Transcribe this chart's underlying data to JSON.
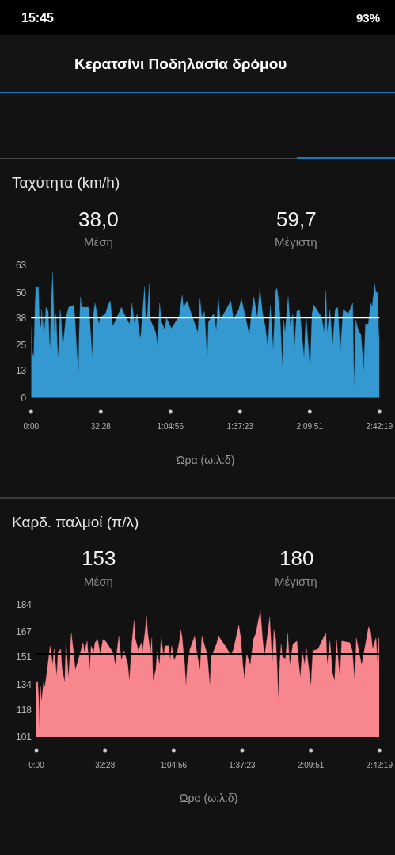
{
  "chart_data": [
    {
      "type": "area",
      "title": "Ταχύτητα (km/h)",
      "xlabel": "Ώρα (ω:λ:δ)",
      "annotations": [
        "15:45",
        "93%",
        "Κερατσίνι Ποδηλασία δρόμου",
        "38,0",
        "Μέση",
        "59,7",
        "Μέγιστη"
      ],
      "xlim": [
        0,
        162.32
      ],
      "xticks": [
        {
          "value": 0,
          "label": "0:00"
        },
        {
          "value": 32.47,
          "label": "32:28"
        },
        {
          "value": 64.93,
          "label": "1:04:56"
        },
        {
          "value": 97.38,
          "label": "1:37:23"
        },
        {
          "value": 129.85,
          "label": "2:09:51"
        },
        {
          "value": 162.32,
          "label": "2:42:19"
        }
      ],
      "ylim": [
        0,
        63
      ],
      "yticks": [
        0,
        13,
        25,
        38,
        50,
        63
      ],
      "ref_lines": [
        {
          "axis": "y",
          "value": 38,
          "color": "#ffffff"
        }
      ],
      "x": [
        0.0,
        0.5,
        1.2,
        1.8,
        2.2,
        3.0,
        3.4,
        3.9,
        4.6,
        4.9,
        5.5,
        6.0,
        6.4,
        6.9,
        8.0,
        8.5,
        8.9,
        9.2,
        9.7,
        10.0,
        10.5,
        10.9,
        11.6,
        12.1,
        12.5,
        13.0,
        13.5,
        14.0,
        14.5,
        15.0,
        15.6,
        16.2,
        17.5,
        19.9,
        20.5,
        21.2,
        21.6,
        22.1,
        22.4,
        23.0,
        23.6,
        26.7,
        27.3,
        28.5,
        28.9,
        29.8,
        31.6,
        32.2,
        34.7,
        35.9,
        36.9,
        37.8,
        38.1,
        42.1,
        43.3,
        45.8,
        46.4,
        47.0,
        48.2,
        49.4,
        50.4,
        51.0,
        52.9,
        53.4,
        54.1,
        55.0,
        55.6,
        58.1,
        58.9,
        59.9,
        60.8,
        62.4,
        63.0,
        65.4,
        69.1,
        70.4,
        71.0,
        72.8,
        74.0,
        77.7,
        78.7,
        79.6,
        80.8,
        82.1,
        82.6,
        85.1,
        86.3,
        87.2,
        88.2,
        93.1,
        94.3,
        96.8,
        98.0,
        101.7,
        102.9,
        103.8,
        105.4,
        106.6,
        107.9,
        109.1,
        110.3,
        111.5,
        112.8,
        114.0,
        114.6,
        115.9,
        117.1,
        117.7,
        118.3,
        119.8,
        120.8,
        122.0,
        122.6,
        123.8,
        125.1,
        127.2,
        128.1,
        130.0,
        130.9,
        131.8,
        135.5,
        136.5,
        137.4,
        138.0,
        139.2,
        140.5,
        141.7,
        142.9,
        144.1,
        145.4,
        147.8,
        149.9,
        150.5,
        151.3,
        152.5,
        153.7,
        155.0,
        155.8,
        157.1,
        158.3,
        158.9,
        160.1,
        160.7,
        161.4,
        162.0,
        162.3
      ],
      "series": [
        {
          "color": "#3399d0",
          "values": [
            34,
            22,
            19,
            43,
            53,
            52,
            53,
            37,
            33,
            42,
            33,
            42,
            31,
            43,
            41,
            27,
            24,
            43,
            52,
            59.7,
            43,
            31,
            40,
            28,
            19,
            27,
            42,
            38,
            27,
            26,
            32,
            38,
            43,
            44,
            37,
            24,
            18,
            13,
            31,
            48,
            43,
            43,
            38,
            19,
            39,
            45,
            35,
            38,
            40,
            44,
            46,
            37,
            34,
            43,
            40,
            35,
            39,
            45,
            35,
            40,
            31,
            28,
            53,
            37,
            38,
            54,
            37,
            31,
            25,
            45,
            36,
            32,
            38,
            33,
            39,
            49,
            43,
            46,
            42,
            31,
            47,
            38,
            41,
            17,
            36,
            40,
            32,
            48,
            37,
            46,
            37,
            42,
            47,
            30,
            42,
            48,
            38,
            52,
            40,
            34,
            24,
            44,
            23,
            51,
            52,
            41,
            15,
            37,
            31,
            48,
            34,
            40,
            22,
            41,
            42,
            19,
            40,
            13,
            40,
            44,
            38,
            31,
            51,
            31,
            42,
            25,
            42,
            43,
            22,
            42,
            40,
            45,
            6,
            37,
            32,
            30,
            13,
            35,
            35,
            45,
            43,
            54,
            50,
            50,
            27,
            38
          ]
        }
      ]
    },
    {
      "type": "area",
      "title": "Καρδ. παλμοί (π/λ)",
      "xlabel": "Ώρα (ω:λ:δ)",
      "annotations": [
        "153",
        "Μέση",
        "180",
        "Μέγιστη"
      ],
      "xlim": [
        0,
        162.32
      ],
      "xticks": [
        {
          "value": 0,
          "label": "0:00"
        },
        {
          "value": 32.47,
          "label": "32:28"
        },
        {
          "value": 64.93,
          "label": "1:04:56"
        },
        {
          "value": 97.38,
          "label": "1:37:23"
        },
        {
          "value": 129.85,
          "label": "2:09:51"
        },
        {
          "value": 162.32,
          "label": "2:42:19"
        }
      ],
      "ylim": [
        101,
        184
      ],
      "yticks": [
        101,
        118,
        134,
        151,
        167,
        184
      ],
      "ref_lines": [
        {
          "axis": "y",
          "value": 153,
          "color": "#000000"
        }
      ],
      "x": [
        0.0,
        0.6,
        1.1,
        1.5,
        1.9,
        2.4,
        3.4,
        4.0,
        5.2,
        6.5,
        7.7,
        8.4,
        9.6,
        10.2,
        11.5,
        12.1,
        13.4,
        14.0,
        15.2,
        16.5,
        17.7,
        18.4,
        20.2,
        22.1,
        22.7,
        24.0,
        25.2,
        25.9,
        27.1,
        27.7,
        29.0,
        30.2,
        31.5,
        32.7,
        35.2,
        36.5,
        37.3,
        39.0,
        40.2,
        41.5,
        43.3,
        44.0,
        45.2,
        46.2,
        46.7,
        48.3,
        49.6,
        50.2,
        51.5,
        52.1,
        52.7,
        54.0,
        54.6,
        55.2,
        56.5,
        57.1,
        58.3,
        59.0,
        60.2,
        60.8,
        62.7,
        63.3,
        64.0,
        65.2,
        66.5,
        67.7,
        68.3,
        68.9,
        70.2,
        70.8,
        71.4,
        72.7,
        74.9,
        75.8,
        77.4,
        78.3,
        80.8,
        82.1,
        82.7,
        85.2,
        86.2,
        88.3,
        90.8,
        92.0,
        93.3,
        95.8,
        96.7,
        97.7,
        98.5,
        99.5,
        101.2,
        102.7,
        103.9,
        104.9,
        106.0,
        107.0,
        107.9,
        109.8,
        110.4,
        111.2,
        111.7,
        112.4,
        113.3,
        113.9,
        114.5,
        115.2,
        115.8,
        116.4,
        117.9,
        118.9,
        119.9,
        121.4,
        123.3,
        124.1,
        124.9,
        125.8,
        127.0,
        127.6,
        129.9,
        130.8,
        133.3,
        135.8,
        137.0,
        137.6,
        138.9,
        140.1,
        141.1,
        142.0,
        143.6,
        144.5,
        148.3,
        149.5,
        150.7,
        151.4,
        153.9,
        156.4,
        157.2,
        158.2,
        159.1,
        160.7,
        161.6,
        162.0,
        162.3
      ],
      "series": [
        {
          "color": "#f8868f",
          "values": [
            135,
            136,
            125,
            106,
            133,
            123,
            136,
            132,
            144,
            158,
            146,
            156,
            139,
            154,
            156,
            144,
            135,
            161,
            138,
            166,
            153,
            143,
            151,
            160,
            154,
            161,
            143,
            158,
            154,
            160,
            162,
            153,
            162,
            161,
            156,
            153,
            146,
            164,
            149,
            155,
            146,
            136,
            160,
            174,
            163,
            155,
            160,
            154,
            168,
            177,
            166,
            153,
            163,
            136,
            143,
            154,
            146,
            164,
            151,
            158,
            158,
            149,
            158,
            149,
            153,
            161,
            168,
            164,
            146,
            133,
            146,
            156,
            164,
            155,
            143,
            164,
            153,
            133,
            151,
            159,
            164,
            160,
            155,
            152,
            156,
            171,
            163,
            146,
            137,
            153,
            146,
            162,
            166,
            173,
            180,
            163,
            151,
            169,
            176,
            156,
            148,
            168,
            162,
            146,
            125,
            148,
            159,
            151,
            150,
            166,
            146,
            159,
            161,
            148,
            138,
            155,
            146,
            158,
            133,
            155,
            156,
            163,
            166,
            146,
            161,
            141,
            136,
            162,
            138,
            161,
            160,
            155,
            135,
            163,
            146,
            164,
            170,
            167,
            156,
            163,
            144,
            163,
            162
          ]
        }
      ]
    }
  ]
}
